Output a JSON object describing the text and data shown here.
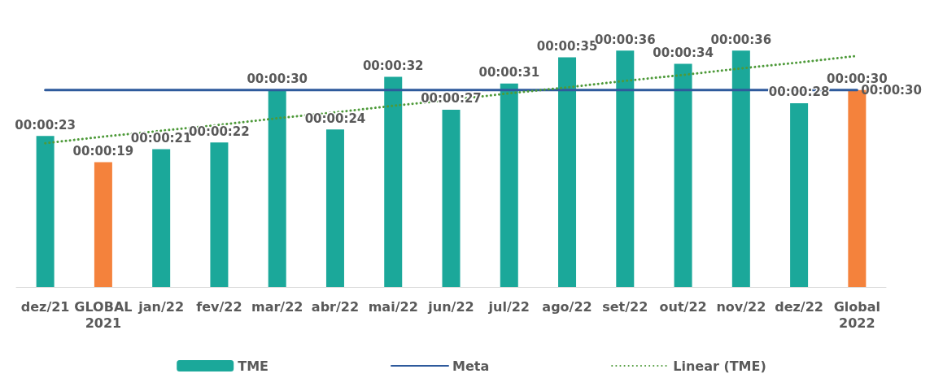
{
  "chart_data": {
    "type": "bar",
    "categories": [
      "dez/21",
      "GLOBAL\n2021",
      "jan/22",
      "fev/22",
      "mar/22",
      "abr/22",
      "mai/22",
      "jun/22",
      "jul/22",
      "ago/22",
      "set/22",
      "out/22",
      "nov/22",
      "dez/22",
      "Global\n2022"
    ],
    "series": [
      {
        "type": "bar",
        "name": "TME",
        "color": "#1ba89a",
        "colors": [
          "#1ba89a",
          "#f4823c",
          "#1ba89a",
          "#1ba89a",
          "#1ba89a",
          "#1ba89a",
          "#1ba89a",
          "#1ba89a",
          "#1ba89a",
          "#1ba89a",
          "#1ba89a",
          "#1ba89a",
          "#1ba89a",
          "#1ba89a",
          "#f4823c"
        ],
        "values": [
          23,
          19,
          21,
          22,
          30,
          24,
          32,
          27,
          31,
          35,
          36,
          34,
          36,
          28,
          30
        ],
        "value_labels": [
          "00:00:23",
          "00:00:19",
          "00:00:21",
          "00:00:22",
          "00:00:30",
          "00:00:24",
          "00:00:32",
          "00:00:27",
          "00:00:31",
          "00:00:35",
          "00:00:36",
          "00:00:34",
          "00:00:36",
          "00:00:28",
          "00:00:30"
        ]
      },
      {
        "type": "line",
        "name": "Meta",
        "color": "#2e5a9c",
        "line_style": "solid",
        "values": [
          30,
          30,
          30,
          30,
          30,
          30,
          30,
          30,
          30,
          30,
          30,
          30,
          30,
          30,
          30
        ],
        "value_labels": [
          null,
          null,
          null,
          null,
          null,
          null,
          null,
          null,
          null,
          null,
          null,
          null,
          null,
          null,
          "00:00:30"
        ]
      },
      {
        "type": "line",
        "name": "Linear (TME)",
        "color": "#4e9a3a",
        "line_style": "dotted",
        "values": [
          21.9,
          22.9,
          23.8,
          24.7,
          25.7,
          26.6,
          27.6,
          28.5,
          29.5,
          30.4,
          31.4,
          32.3,
          33.3,
          34.2,
          35.2
        ]
      }
    ],
    "legend": "bottom",
    "grid": false,
    "marker": "none"
  }
}
